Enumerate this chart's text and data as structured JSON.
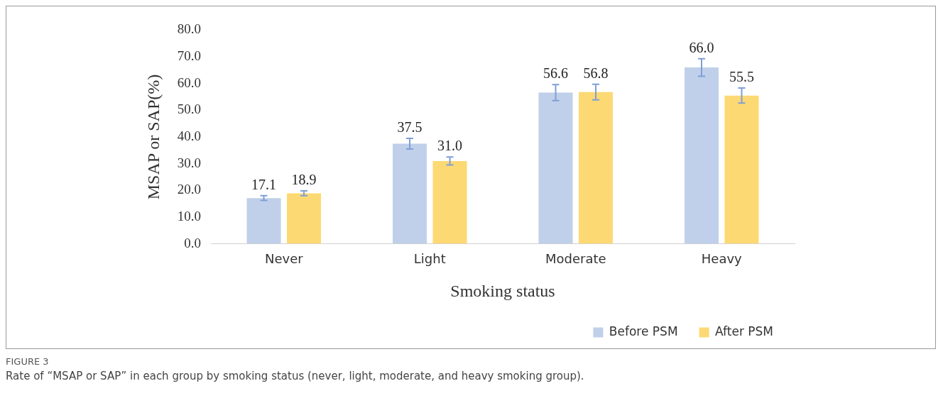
{
  "chart_data": {
    "type": "bar",
    "xlabel": "Smoking status",
    "ylabel": "MSAP or SAP(%)",
    "categories": [
      "Never",
      "Light",
      "Moderate",
      "Heavy"
    ],
    "series": [
      {
        "name": "Before PSM",
        "color": "#c0d0ea",
        "values": [
          17.1,
          37.5,
          56.6,
          66
        ],
        "value_labels": [
          "17.1",
          "37.5",
          "56.6",
          "66.0"
        ],
        "errors": [
          0.9,
          2.0,
          3.0,
          3.3
        ]
      },
      {
        "name": "After PSM",
        "color": "#fdd974",
        "values": [
          18.9,
          31,
          56.8,
          55.5
        ],
        "value_labels": [
          "18.9",
          "31.0",
          "56.8",
          "55.5"
        ],
        "errors": [
          0.9,
          1.5,
          2.9,
          2.8
        ]
      }
    ],
    "ylim": [
      0,
      80
    ],
    "yticks": [
      {
        "value": 0,
        "label": "0.0"
      },
      {
        "value": 10,
        "label": "10.0"
      },
      {
        "value": 20,
        "label": "20.0"
      },
      {
        "value": 30,
        "label": "30.0"
      },
      {
        "value": 40,
        "label": "40.0"
      },
      {
        "value": 50,
        "label": "50.0"
      },
      {
        "value": 60,
        "label": "60.0"
      },
      {
        "value": 70,
        "label": "70.0"
      },
      {
        "value": 80,
        "label": "80.0"
      }
    ],
    "grid": false,
    "legend": "bottom right",
    "annotations": [
      "FIGURE 3",
      "Rate of “MSAP or SAP” in each group by smoking status (never, light, moderate, and heavy smoking group)."
    ]
  }
}
